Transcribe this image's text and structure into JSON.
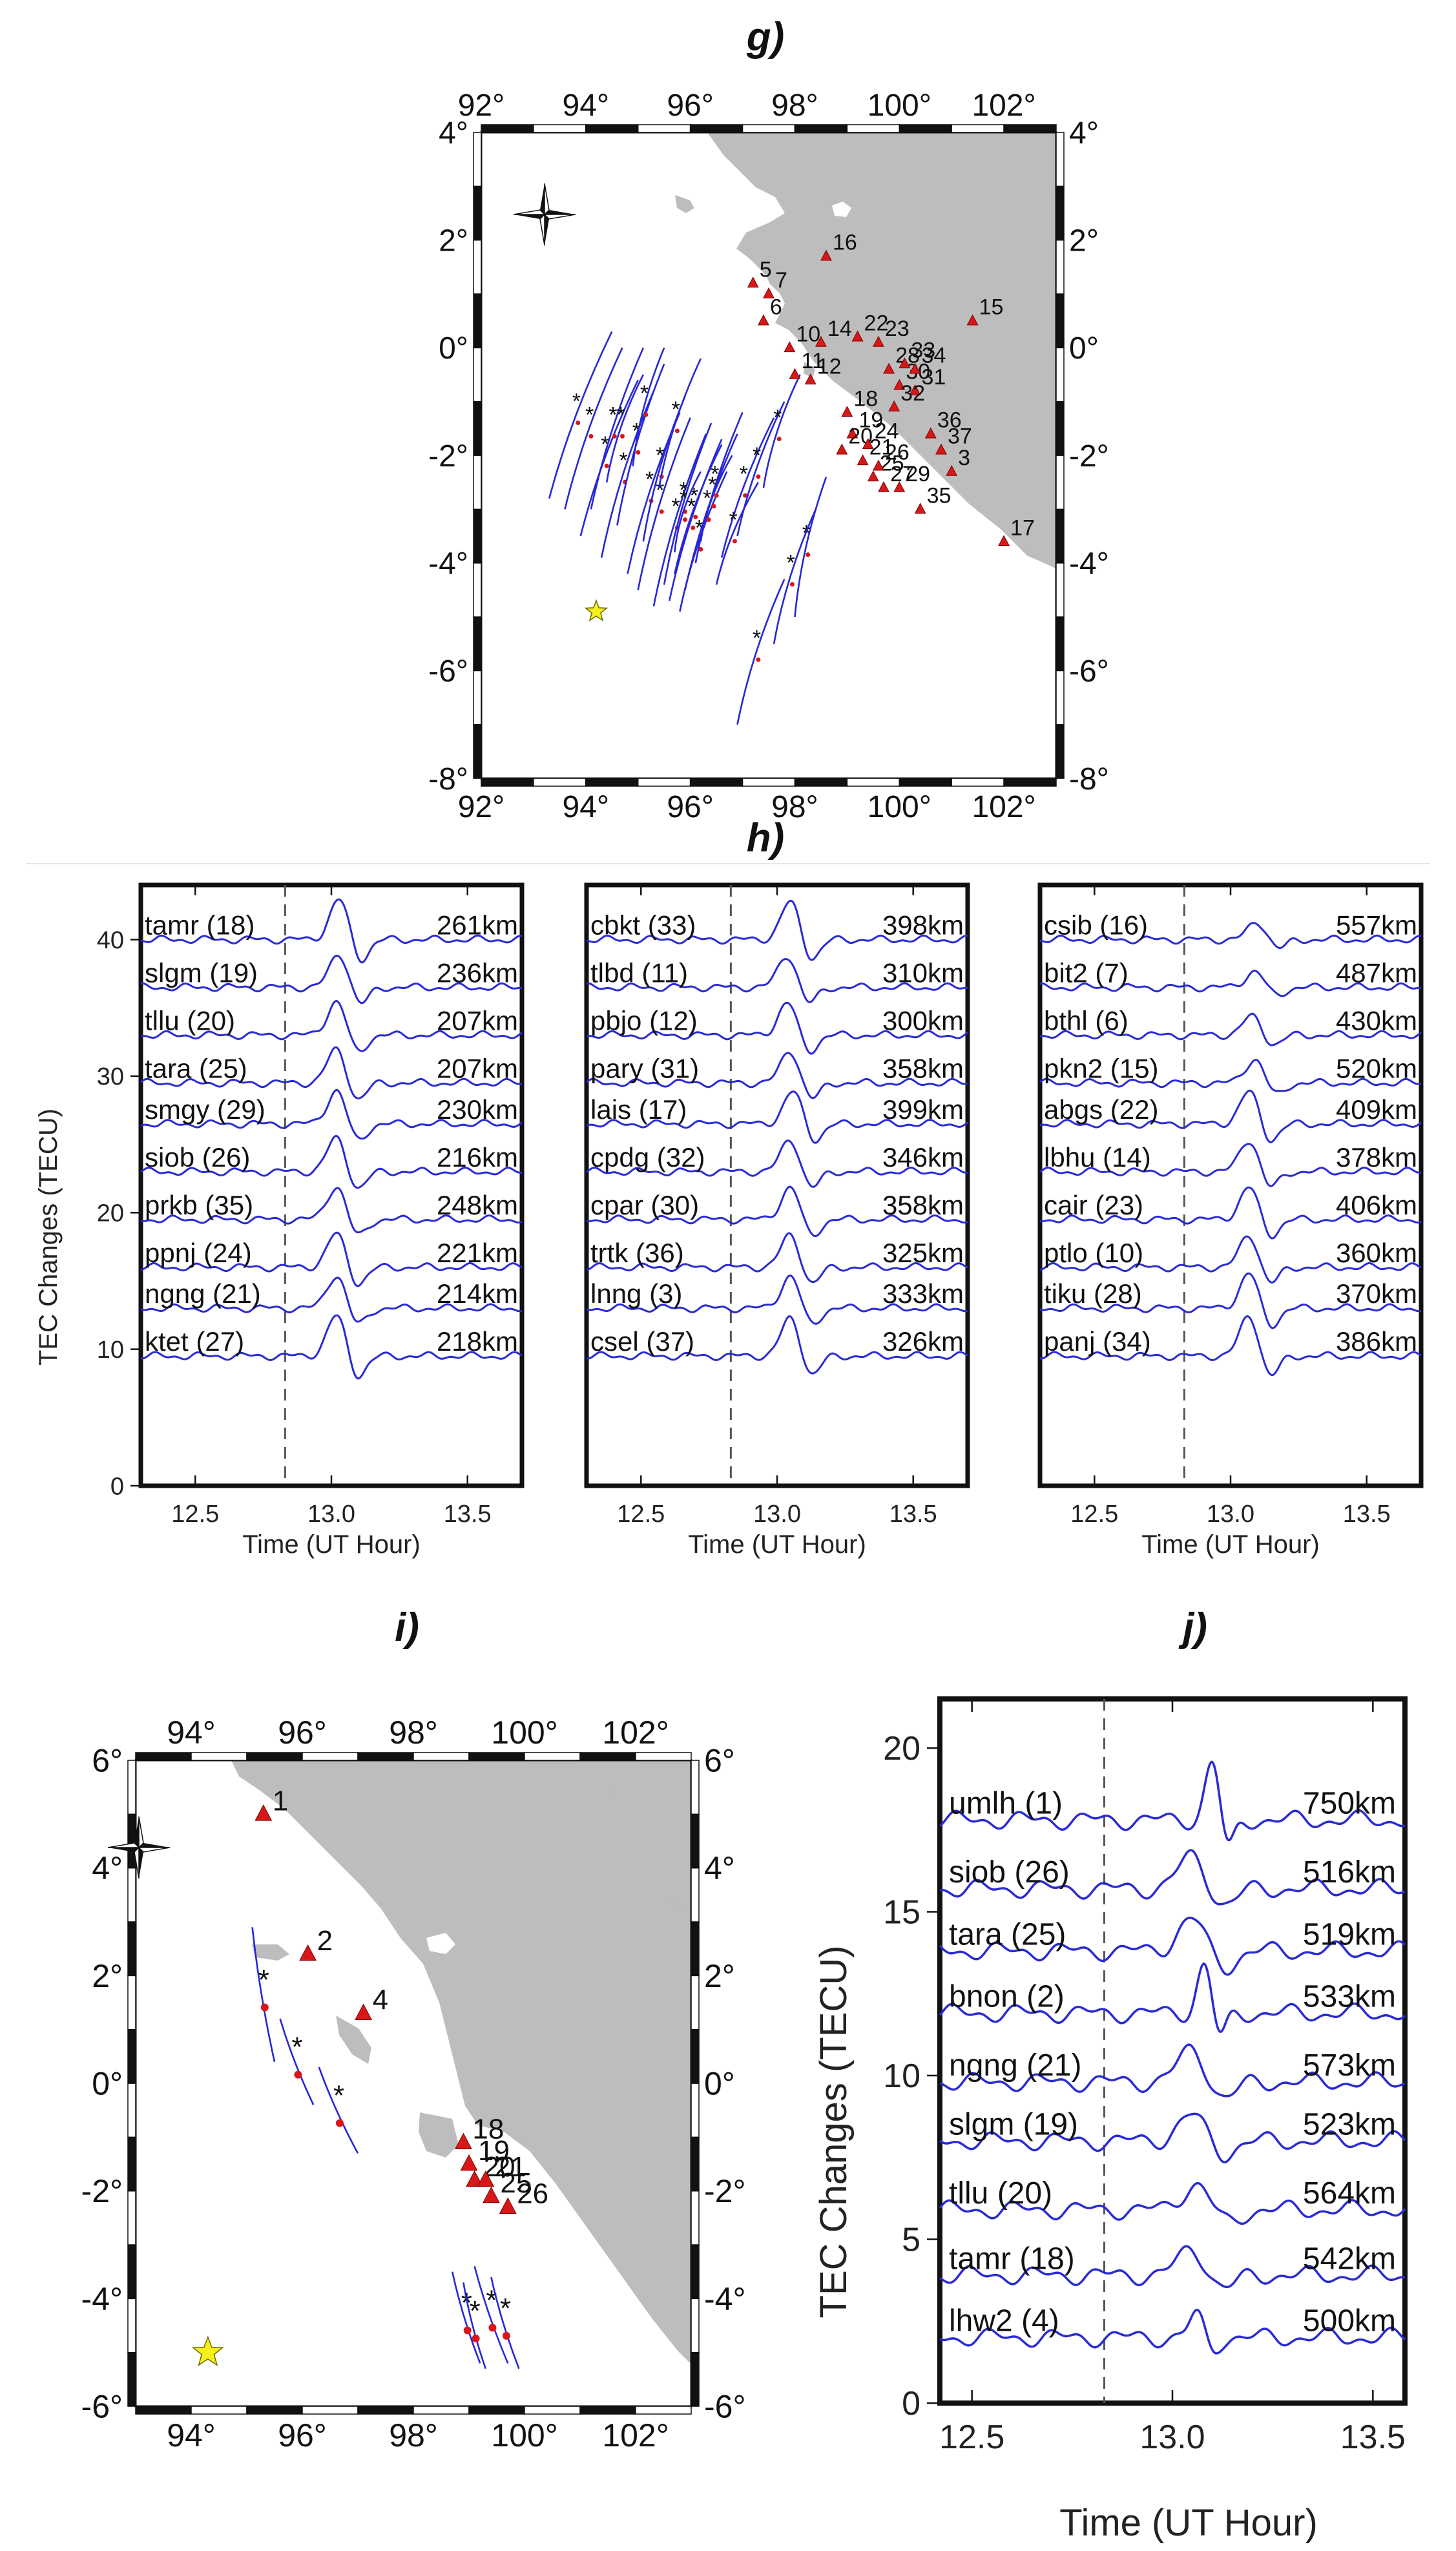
{
  "panel_labels": {
    "g": "g)",
    "h": "h)",
    "i": "i)",
    "j": "j)"
  },
  "colors": {
    "land": "#bdbdbd",
    "track": "#2727d8",
    "station": "#d81818",
    "epicenter": "#f6ef1a",
    "trace": "#2a2ad6"
  },
  "icons": {
    "epicenter": "star-icon",
    "station": "triangle-icon",
    "north_arrow": "compass-rose-icon"
  },
  "chart_data": [
    {
      "id": "g",
      "type": "map",
      "lon_range": [
        92,
        103
      ],
      "lat_range": [
        -8,
        4
      ],
      "x_ticks": [
        92,
        94,
        96,
        98,
        100,
        102
      ],
      "x_tick_labels": [
        "92°",
        "94°",
        "96°",
        "98°",
        "100°",
        "102°"
      ],
      "y_ticks": [
        4,
        2,
        0,
        -2,
        -4,
        -6,
        -8
      ],
      "y_tick_labels": [
        "4°",
        "2°",
        "0°",
        "-2°",
        "-4°",
        "-6°",
        "-8°"
      ],
      "epicenter": [
        94.2,
        -4.9
      ],
      "stations": [
        {
          "id": "3",
          "lon": 101.0,
          "lat": -2.3
        },
        {
          "id": "5",
          "lon": 97.2,
          "lat": 1.2
        },
        {
          "id": "6",
          "lon": 97.4,
          "lat": 0.5
        },
        {
          "id": "7",
          "lon": 97.5,
          "lat": 1.0
        },
        {
          "id": "10",
          "lon": 97.9,
          "lat": 0.0
        },
        {
          "id": "11",
          "lon": 98.0,
          "lat": -0.5
        },
        {
          "id": "12",
          "lon": 98.3,
          "lat": -0.6
        },
        {
          "id": "14",
          "lon": 98.5,
          "lat": 0.1
        },
        {
          "id": "15",
          "lon": 101.4,
          "lat": 0.5
        },
        {
          "id": "16",
          "lon": 98.6,
          "lat": 1.7
        },
        {
          "id": "17",
          "lon": 102.0,
          "lat": -3.6
        },
        {
          "id": "18",
          "lon": 99.0,
          "lat": -1.2
        },
        {
          "id": "19",
          "lon": 99.1,
          "lat": -1.6
        },
        {
          "id": "20",
          "lon": 98.9,
          "lat": -1.9
        },
        {
          "id": "21",
          "lon": 99.3,
          "lat": -2.1
        },
        {
          "id": "22",
          "lon": 99.2,
          "lat": 0.2
        },
        {
          "id": "23",
          "lon": 99.6,
          "lat": 0.1
        },
        {
          "id": "24",
          "lon": 99.4,
          "lat": -1.8
        },
        {
          "id": "25",
          "lon": 99.5,
          "lat": -2.4
        },
        {
          "id": "26",
          "lon": 99.6,
          "lat": -2.2
        },
        {
          "id": "27",
          "lon": 99.7,
          "lat": -2.6
        },
        {
          "id": "28",
          "lon": 99.8,
          "lat": -0.4
        },
        {
          "id": "29",
          "lon": 100.0,
          "lat": -2.6
        },
        {
          "id": "30",
          "lon": 100.0,
          "lat": -0.7
        },
        {
          "id": "31",
          "lon": 100.3,
          "lat": -0.8
        },
        {
          "id": "32",
          "lon": 99.9,
          "lat": -1.1
        },
        {
          "id": "33",
          "lon": 100.1,
          "lat": -0.3
        },
        {
          "id": "34",
          "lon": 100.3,
          "lat": -0.4
        },
        {
          "id": "35",
          "lon": 100.4,
          "lat": -3.0
        },
        {
          "id": "36",
          "lon": 100.6,
          "lat": -1.6
        },
        {
          "id": "37",
          "lon": 100.8,
          "lat": -1.9
        }
      ]
    },
    {
      "id": "h",
      "type": "line",
      "xlabel": "Time (UT Hour)",
      "ylabel": "TEC Changes (TECU)",
      "xlim": [
        12.3,
        13.7
      ],
      "ylim": [
        0,
        44
      ],
      "x_ticks": [
        12.5,
        13.0,
        13.5
      ],
      "x_tick_labels": [
        "12.5",
        "13.0",
        "13.5"
      ],
      "y_ticks": [
        0,
        10,
        20,
        30,
        40
      ],
      "y_tick_labels": [
        "0",
        "10",
        "20",
        "30",
        "40"
      ],
      "reference_time": 12.83,
      "subplots": [
        {
          "series": [
            {
              "name": "tamr (18)",
              "distance": "261km",
              "offset": 40,
              "peak": 13.03,
              "amp": 3.0
            },
            {
              "name": "slgm (19)",
              "distance": "236km",
              "offset": 36.5,
              "peak": 13.03,
              "amp": 2.5
            },
            {
              "name": "tllu (20)",
              "distance": "207km",
              "offset": 33,
              "peak": 13.02,
              "amp": 2.5
            },
            {
              "name": "tara (25)",
              "distance": "207km",
              "offset": 29.5,
              "peak": 13.02,
              "amp": 2.5
            },
            {
              "name": "smgy (29)",
              "distance": "230km",
              "offset": 26.5,
              "peak": 13.02,
              "amp": 2.5
            },
            {
              "name": "siob (26)",
              "distance": "216km",
              "offset": 23,
              "peak": 13.02,
              "amp": 2.5
            },
            {
              "name": "prkb (35)",
              "distance": "248km",
              "offset": 19.5,
              "peak": 13.02,
              "amp": 2.5
            },
            {
              "name": "ppnj (24)",
              "distance": "221km",
              "offset": 16,
              "peak": 13.02,
              "amp": 2.5
            },
            {
              "name": "ngng (21)",
              "distance": "214km",
              "offset": 13,
              "peak": 13.02,
              "amp": 2.5
            },
            {
              "name": "ktet (27)",
              "distance": "218km",
              "offset": 9.5,
              "peak": 13.02,
              "amp": 3.0
            }
          ]
        },
        {
          "series": [
            {
              "name": "cbkt (33)",
              "distance": "398km",
              "offset": 40,
              "peak": 13.05,
              "amp": 2.8
            },
            {
              "name": "tlbd (11)",
              "distance": "310km",
              "offset": 36.5,
              "peak": 13.04,
              "amp": 2.4
            },
            {
              "name": "pbjo (12)",
              "distance": "300km",
              "offset": 33,
              "peak": 13.04,
              "amp": 2.4
            },
            {
              "name": "pary (31)",
              "distance": "358km",
              "offset": 29.5,
              "peak": 13.05,
              "amp": 2.4
            },
            {
              "name": "lais (17)",
              "distance": "399km",
              "offset": 26.5,
              "peak": 13.06,
              "amp": 2.4
            },
            {
              "name": "cpdg (32)",
              "distance": "346km",
              "offset": 23,
              "peak": 13.05,
              "amp": 2.4
            },
            {
              "name": "cpar (30)",
              "distance": "358km",
              "offset": 19.5,
              "peak": 13.05,
              "amp": 2.4
            },
            {
              "name": "trtk (36)",
              "distance": "325km",
              "offset": 16,
              "peak": 13.05,
              "amp": 2.4
            },
            {
              "name": "lnng (3)",
              "distance": "333km",
              "offset": 13,
              "peak": 13.05,
              "amp": 2.4
            },
            {
              "name": "csel (37)",
              "distance": "326km",
              "offset": 9.5,
              "peak": 13.05,
              "amp": 2.8
            }
          ]
        },
        {
          "series": [
            {
              "name": "csib (16)",
              "distance": "557km",
              "offset": 40,
              "peak": 13.1,
              "amp": 1.3
            },
            {
              "name": "bit2 (7)",
              "distance": "487km",
              "offset": 36.5,
              "peak": 13.09,
              "amp": 1.2
            },
            {
              "name": "bthl (6)",
              "distance": "430km",
              "offset": 33,
              "peak": 13.08,
              "amp": 1.4
            },
            {
              "name": "pkn2 (15)",
              "distance": "520km",
              "offset": 29.5,
              "peak": 13.09,
              "amp": 1.8
            },
            {
              "name": "abgs (22)",
              "distance": "409km",
              "offset": 26.5,
              "peak": 13.07,
              "amp": 2.4
            },
            {
              "name": "lbhu (14)",
              "distance": "378km",
              "offset": 23,
              "peak": 13.07,
              "amp": 2.4
            },
            {
              "name": "cair (23)",
              "distance": "406km",
              "offset": 19.5,
              "peak": 13.07,
              "amp": 2.4
            },
            {
              "name": "ptlo (10)",
              "distance": "360km",
              "offset": 16,
              "peak": 13.07,
              "amp": 2.4
            },
            {
              "name": "tiku (28)",
              "distance": "370km",
              "offset": 13,
              "peak": 13.07,
              "amp": 2.6
            },
            {
              "name": "panj (34)",
              "distance": "386km",
              "offset": 9.5,
              "peak": 13.07,
              "amp": 3.0
            }
          ]
        }
      ]
    },
    {
      "id": "i",
      "type": "map",
      "lon_range": [
        93,
        103
      ],
      "lat_range": [
        -6,
        6
      ],
      "x_ticks": [
        94,
        96,
        98,
        100,
        102
      ],
      "x_tick_labels": [
        "94°",
        "96°",
        "98°",
        "100°",
        "102°"
      ],
      "y_ticks": [
        6,
        4,
        2,
        0,
        -2,
        -4,
        -6
      ],
      "y_tick_labels": [
        "6°",
        "4°",
        "2°",
        "0°",
        "-2°",
        "-4°",
        "-6°"
      ],
      "epicenter": [
        94.3,
        -5.0
      ],
      "stations": [
        {
          "id": "1",
          "lon": 95.3,
          "lat": 5.0
        },
        {
          "id": "2",
          "lon": 96.1,
          "lat": 2.4
        },
        {
          "id": "4",
          "lon": 97.1,
          "lat": 1.3
        },
        {
          "id": "18",
          "lon": 98.9,
          "lat": -1.1
        },
        {
          "id": "19",
          "lon": 99.0,
          "lat": -1.5
        },
        {
          "id": "20",
          "lon": 99.1,
          "lat": -1.8
        },
        {
          "id": "21",
          "lon": 99.3,
          "lat": -1.8
        },
        {
          "id": "25",
          "lon": 99.4,
          "lat": -2.1
        },
        {
          "id": "26",
          "lon": 99.7,
          "lat": -2.3
        }
      ]
    },
    {
      "id": "j",
      "type": "line",
      "xlabel": "Time (UT Hour)",
      "ylabel": "TEC Changes (TECU)",
      "xlim": [
        12.42,
        13.58
      ],
      "ylim": [
        0,
        21.5
      ],
      "x_ticks": [
        12.5,
        13.0,
        13.5
      ],
      "x_tick_labels": [
        "12.5",
        "13.0",
        "13.5"
      ],
      "y_ticks": [
        0,
        5,
        10,
        15,
        20
      ],
      "y_tick_labels": [
        "0",
        "5",
        "10",
        "15",
        "20"
      ],
      "reference_time": 12.83,
      "series": [
        {
          "name": "umlh (1)",
          "distance": "750km",
          "offset": 17.8,
          "peak": 13.1,
          "amp": 1.8,
          "shape": "sharp"
        },
        {
          "name": "siob (26)",
          "distance": "516km",
          "offset": 15.7,
          "peak": 13.05,
          "amp": 1.0,
          "shape": "broad"
        },
        {
          "name": "tara (25)",
          "distance": "519km",
          "offset": 13.8,
          "peak": 13.05,
          "amp": 1.0,
          "shape": "broad"
        },
        {
          "name": "bnon (2)",
          "distance": "533km",
          "offset": 11.9,
          "peak": 13.08,
          "amp": 1.5,
          "shape": "sharp"
        },
        {
          "name": "ngng (21)",
          "distance": "573km",
          "offset": 9.8,
          "peak": 13.05,
          "amp": 1.0,
          "shape": "broad"
        },
        {
          "name": "slgm (19)",
          "distance": "523km",
          "offset": 8.0,
          "peak": 13.05,
          "amp": 0.8,
          "shape": "broad"
        },
        {
          "name": "tllu (20)",
          "distance": "564km",
          "offset": 5.9,
          "peak": 13.06,
          "amp": 0.8,
          "shape": "broad"
        },
        {
          "name": "tamr (18)",
          "distance": "542km",
          "offset": 3.9,
          "peak": 13.05,
          "amp": 0.8,
          "shape": "broad"
        },
        {
          "name": "lhw2 (4)",
          "distance": "500km",
          "offset": 2.0,
          "peak": 13.06,
          "amp": 0.7,
          "shape": "sharp"
        }
      ]
    }
  ]
}
